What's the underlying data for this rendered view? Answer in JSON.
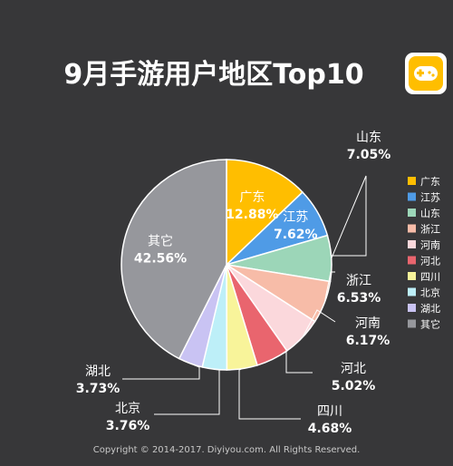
{
  "chart_data": {
    "type": "pie",
    "title": "9月手游用户地区Top10",
    "slices": [
      {
        "label": "广东",
        "value": 12.88,
        "display": "12.88%",
        "color": "#FFBE00"
      },
      {
        "label": "江苏",
        "value": 7.62,
        "display": "7.62%",
        "color": "#4F9BE6"
      },
      {
        "label": "山东",
        "value": 7.05,
        "display": "7.05%",
        "color": "#9CD6B8"
      },
      {
        "label": "浙江",
        "value": 6.53,
        "display": "6.53%",
        "color": "#F7BCA8"
      },
      {
        "label": "河南",
        "value": 6.17,
        "display": "6.17%",
        "color": "#FBD8DC"
      },
      {
        "label": "河北",
        "value": 5.02,
        "display": "5.02%",
        "color": "#E9656E"
      },
      {
        "label": "四川",
        "value": 4.68,
        "display": "4.68%",
        "color": "#F8F49A"
      },
      {
        "label": "北京",
        "value": 3.76,
        "display": "3.76%",
        "color": "#BDEFF8"
      },
      {
        "label": "湖北",
        "value": 3.73,
        "display": "3.73%",
        "color": "#C9C3F3"
      },
      {
        "label": "其它",
        "value": 42.56,
        "display": "42.56%",
        "color": "#96979C"
      }
    ],
    "legend_position": "right"
  },
  "footer": "Copyright © 2014-2017. Diyiyou.com. All Rights Reserved.",
  "colors": {
    "background": "#373739",
    "text": "#FFFFFF",
    "leader_line": "#FFFFFF",
    "logo_bg": "#FFFFFF",
    "logo_inner": "#FFBE00"
  },
  "icons": {
    "logo": "gamepad-icon"
  }
}
